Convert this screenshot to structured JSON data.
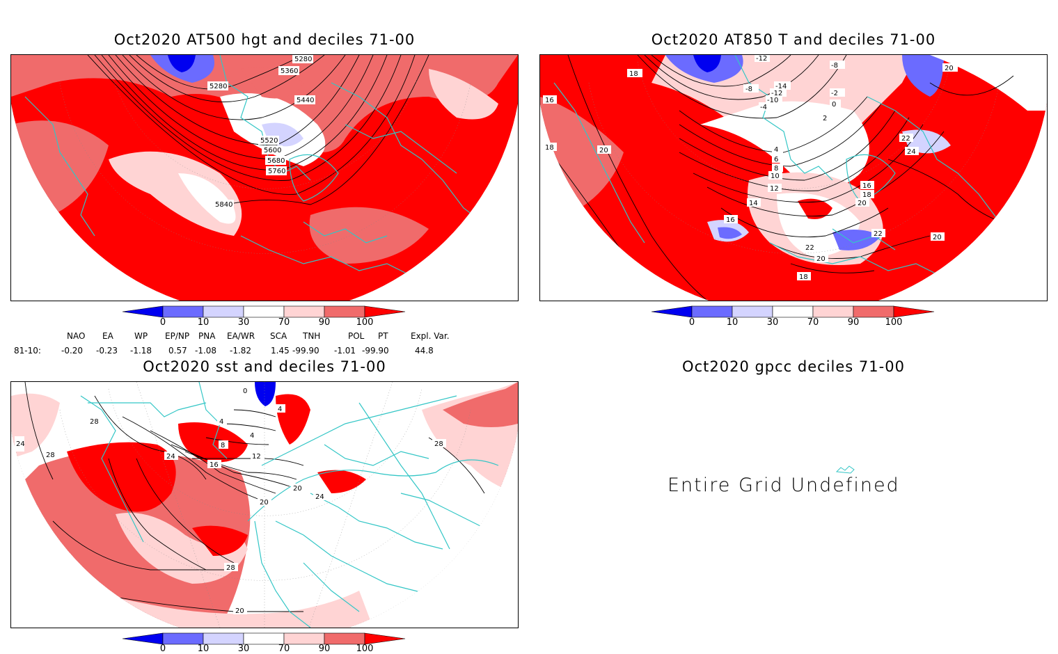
{
  "colors": {
    "d0_10": "#0000f0",
    "d10_30": "#6b6bff",
    "d30_70_low": "#d4d4ff",
    "normal": "#ffffff",
    "d70_90": "#ffd4d4",
    "d90_100": "#f06b6b",
    "d100": "#ff0000",
    "coast": "#33c6c6",
    "contour": "#000000"
  },
  "colorbar": {
    "ticks": [
      "0",
      "10",
      "30",
      "70",
      "90",
      "100"
    ]
  },
  "panels": [
    {
      "id": "at500",
      "title": "Oct2020 AT500 hgt and deciles 71-00",
      "contour_labels": [
        "5280",
        "5360",
        "5280",
        "5440",
        "5520",
        "5600",
        "5680",
        "5760",
        "5840"
      ]
    },
    {
      "id": "at850",
      "title": "Oct2020 AT850 T and deciles 71-00",
      "contour_labels": [
        "-12",
        "-8",
        "20",
        "18",
        "-8",
        "-14",
        "-12",
        "-10",
        "-2",
        "-4",
        "0",
        "16",
        "2",
        "18",
        "20",
        "4",
        "22",
        "6",
        "24",
        "8",
        "10",
        "16",
        "12",
        "18",
        "14",
        "20",
        "16",
        "22",
        "22",
        "20",
        "20",
        "18"
      ]
    },
    {
      "id": "sst",
      "title": "Oct2020 sst and deciles 71-00",
      "contour_labels": [
        "0",
        "4",
        "28",
        "4",
        "24",
        "8",
        "28",
        "4",
        "12",
        "24",
        "16",
        "20",
        "20",
        "24",
        "28",
        "28",
        "20"
      ]
    },
    {
      "id": "gpcc",
      "title": "Oct2020 gpcc deciles 71-00",
      "message": "Entire Grid Undefined"
    }
  ],
  "teleconnections": {
    "headers": [
      "NAO",
      "EA",
      "WP",
      "EP/NP",
      "PNA",
      "EA/WR",
      "SCA",
      "TNH",
      "POL",
      "PT",
      "Expl. Var."
    ],
    "row_label": "81-10:",
    "values": [
      "-0.20",
      "-0.23",
      "-1.18",
      "0.57",
      "-1.08",
      "-1.82",
      "1.45",
      "-99.90",
      "-1.01",
      "-99.90",
      "44.8"
    ]
  }
}
